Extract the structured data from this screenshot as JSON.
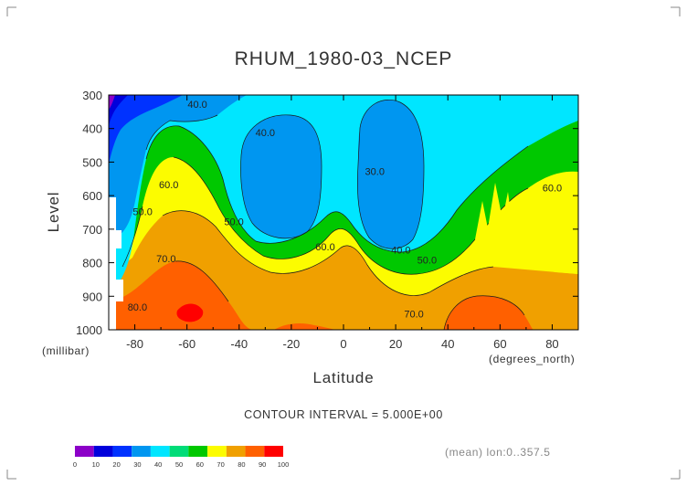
{
  "chart_data": {
    "type": "heatmap",
    "title": "RHUM_1980-03_NCEP",
    "xlabel": "Latitude",
    "ylabel": "Level",
    "x_unit_label": "(degrees_north)",
    "y_unit_label": "(millibar)",
    "xlim": [
      -90,
      90
    ],
    "ylim": [
      1000,
      300
    ],
    "x_ticks": [
      -80,
      -60,
      -40,
      -20,
      0,
      20,
      40,
      60,
      80
    ],
    "y_ticks": [
      300,
      400,
      500,
      600,
      700,
      800,
      900,
      1000
    ],
    "contour_labels": [
      {
        "text": "40.0",
        "x": -56,
        "y": 330
      },
      {
        "text": "40.0",
        "x": -30,
        "y": 415
      },
      {
        "text": "30.0",
        "x": 12,
        "y": 530
      },
      {
        "text": "60.0",
        "x": -67,
        "y": 570
      },
      {
        "text": "50.0",
        "x": -77,
        "y": 650
      },
      {
        "text": "50.0",
        "x": -42,
        "y": 680
      },
      {
        "text": "60.0",
        "x": -7,
        "y": 755
      },
      {
        "text": "40.0",
        "x": 22,
        "y": 765
      },
      {
        "text": "70.0",
        "x": -68,
        "y": 790
      },
      {
        "text": "50.0",
        "x": 32,
        "y": 795
      },
      {
        "text": "60.0",
        "x": 80,
        "y": 580
      },
      {
        "text": "80.0",
        "x": -79,
        "y": 935
      },
      {
        "text": "70.0",
        "x": 27,
        "y": 955
      }
    ],
    "annotation": "CONTOUR INTERVAL = 5.000E+00",
    "footer": "(mean) lon:0..357.5",
    "colorbar": {
      "ticks": [
        "0",
        "10",
        "20",
        "30",
        "40",
        "50",
        "60",
        "70",
        "80",
        "90",
        "100"
      ],
      "colors": [
        "#8c00c8",
        "#0000dc",
        "#0032ff",
        "#0096f0",
        "#00e6ff",
        "#00dc78",
        "#00c800",
        "#fcfc00",
        "#f0a000",
        "#ff6000",
        "#ff0000"
      ]
    }
  }
}
